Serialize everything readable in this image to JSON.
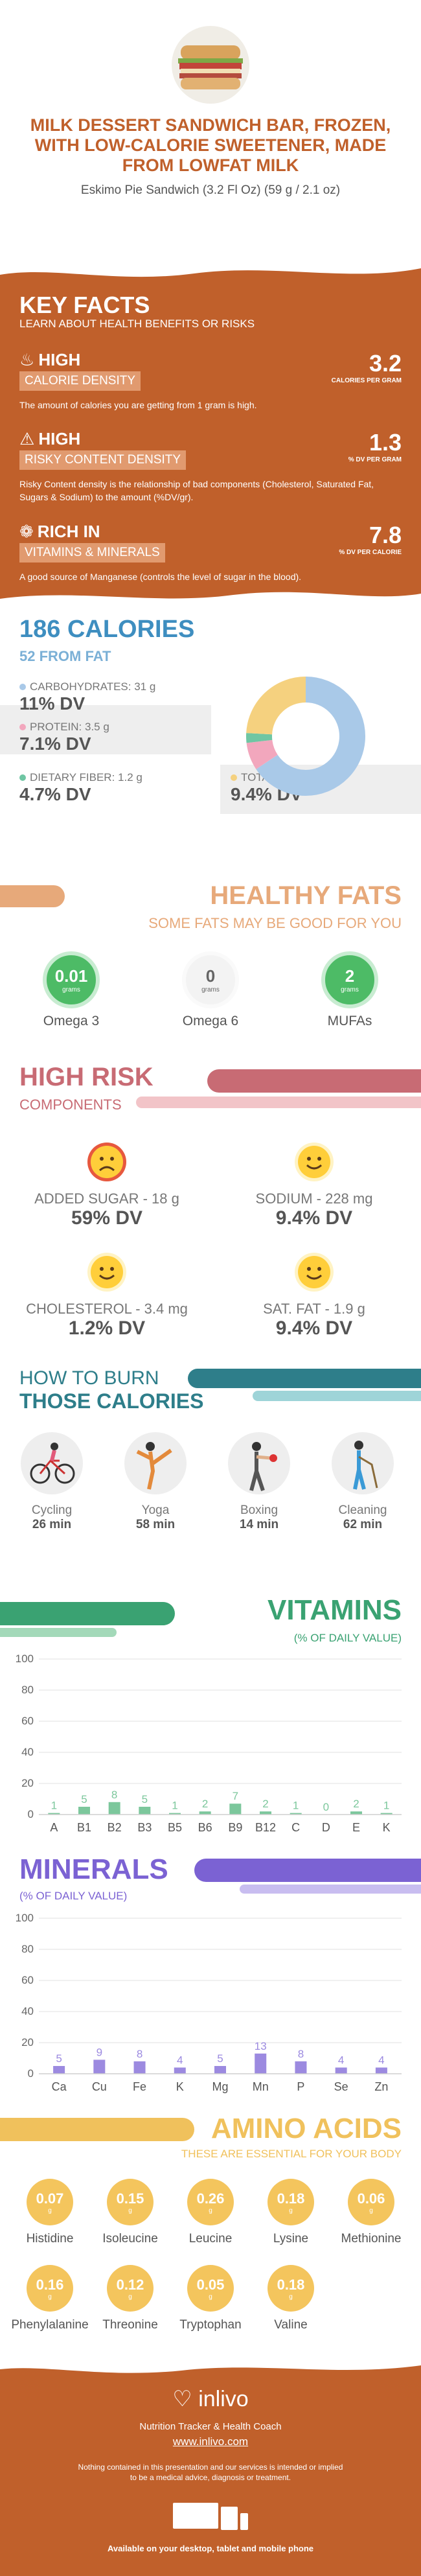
{
  "header": {
    "title": "MILK DESSERT SANDWICH BAR, FROZEN, WITH LOW-CALORIE SWEETENER, MADE FROM LOWFAT MILK",
    "subtitle": "Eskimo Pie Sandwich (3.2 Fl Oz) (59 g / 2.1 oz)"
  },
  "key_facts": {
    "title": "KEY FACTS",
    "subtitle": "LEARN ABOUT HEALTH BENEFITS OR RISKS",
    "items": [
      {
        "level": "HIGH",
        "label": "CALORIE DENSITY",
        "desc": "The amount of calories you are getting from 1 gram is high.",
        "value": "3.2",
        "unit": "CALORIES PER GRAM",
        "icon": "flame-icon"
      },
      {
        "level": "HIGH",
        "label": "RISKY CONTENT DENSITY",
        "desc": "Risky Content density is the relationship of bad components (Cholesterol, Saturated Fat, Sugars & Sodium) to the amount (%DV/gr).",
        "value": "1.3",
        "unit": "% DV PER GRAM",
        "icon": "warning-icon"
      },
      {
        "level": "RICH  IN",
        "label": "VITAMINS & MINERALS",
        "desc": "A good source of Manganese (controls the level of sugar in the blood).",
        "value": "7.8",
        "unit": "% DV PER CALORIE",
        "icon": "leaf-icon"
      }
    ]
  },
  "calories": {
    "title": "186 CALORIES",
    "subtitle": "52 FROM FAT",
    "carbs": {
      "label": "CARBOHYDRATES: 31 g",
      "value": "11% DV",
      "color": "#a9c9e8"
    },
    "protein": {
      "label": "PROTEIN: 3.5 g",
      "value": "7.1% DV",
      "color": "#f2a7bd"
    },
    "fiber": {
      "label": "DIETARY FIBER: 1.2 g",
      "value": "4.7% DV",
      "color": "#6fc6a3"
    },
    "fat": {
      "label": "TOTAL FAT: 5.8 g",
      "value": "9.4% DV",
      "color": "#f5d17f"
    }
  },
  "fats": {
    "title": "HEALTHY FATS",
    "subtitle": "SOME FATS MAY BE GOOD FOR YOU",
    "items": [
      {
        "value": "0.01",
        "unit": "grams",
        "name": "Omega 3",
        "active": true
      },
      {
        "value": "0",
        "unit": "grams",
        "name": "Omega 6",
        "active": false
      },
      {
        "value": "2",
        "unit": "grams",
        "name": "MUFAs",
        "active": true
      }
    ]
  },
  "risk": {
    "title": "HIGH RISK",
    "subtitle": "COMPONENTS",
    "items": [
      {
        "label": "ADDED SUGAR - 18 g",
        "value": "59% DV",
        "mood": "sad"
      },
      {
        "label": "SODIUM - 228 mg",
        "value": "9.4% DV",
        "mood": "happy"
      },
      {
        "label": "CHOLESTEROL - 3.4 mg",
        "value": "1.2% DV",
        "mood": "happy"
      },
      {
        "label": "SAT. FAT - 1.9 g",
        "value": "9.4% DV",
        "mood": "happy"
      }
    ]
  },
  "burn": {
    "title1": "HOW TO BURN",
    "title2": "THOSE CALORIES",
    "items": [
      {
        "name": "Cycling",
        "minutes": "26 min"
      },
      {
        "name": "Yoga",
        "minutes": "58 min"
      },
      {
        "name": "Boxing",
        "minutes": "14 min"
      },
      {
        "name": "Cleaning",
        "minutes": "62 min"
      }
    ]
  },
  "vitamins": {
    "title": "VITAMINS",
    "subtitle": "(% OF DAILY VALUE)",
    "chart_data": {
      "type": "bar",
      "categories": [
        "A",
        "B1",
        "B2",
        "B3",
        "B5",
        "B6",
        "B9",
        "B12",
        "C",
        "D",
        "E",
        "K"
      ],
      "values": [
        1,
        5,
        8,
        5,
        1,
        2,
        7,
        2,
        1,
        0,
        2,
        1
      ],
      "ylim": [
        0,
        100
      ],
      "yticks": [
        0,
        20,
        40,
        60,
        80,
        100
      ],
      "color": "#7cc79c"
    }
  },
  "minerals": {
    "title": "MINERALS",
    "subtitle": "(% OF DAILY VALUE)",
    "chart_data": {
      "type": "bar",
      "categories": [
        "Ca",
        "Cu",
        "Fe",
        "K",
        "Mg",
        "Mn",
        "P",
        "Se",
        "Zn"
      ],
      "values": [
        5,
        9,
        8,
        4,
        5,
        13,
        8,
        4,
        4
      ],
      "ylim": [
        0,
        100
      ],
      "yticks": [
        0,
        20,
        40,
        60,
        80,
        100
      ],
      "color": "#9c8ae0"
    }
  },
  "amino": {
    "title": "AMINO ACIDS",
    "subtitle": "THESE ARE ESSENTIAL FOR YOUR BODY",
    "unit": "g",
    "items": [
      {
        "value": "0.07",
        "name": "Histidine"
      },
      {
        "value": "0.15",
        "name": "Isoleucine"
      },
      {
        "value": "0.26",
        "name": "Leucine"
      },
      {
        "value": "0.18",
        "name": "Lysine"
      },
      {
        "value": "0.06",
        "name": "Methionine"
      },
      {
        "value": "0.16",
        "name": "Phenylalanine"
      },
      {
        "value": "0.12",
        "name": "Threonine"
      },
      {
        "value": "0.05",
        "name": "Tryptophan"
      },
      {
        "value": "0.18",
        "name": "Valine"
      }
    ]
  },
  "footer": {
    "brand": "inlivo",
    "tagline": "Nutrition Tracker & Health Coach",
    "url": "www.inlivo.com",
    "disclaimer1": "Nothing contained in this presentation and our services is intended or implied",
    "disclaimer2": "to be a medical advice, diagnosis or treatment.",
    "devices": "Available on your desktop, tablet and mobile phone"
  }
}
